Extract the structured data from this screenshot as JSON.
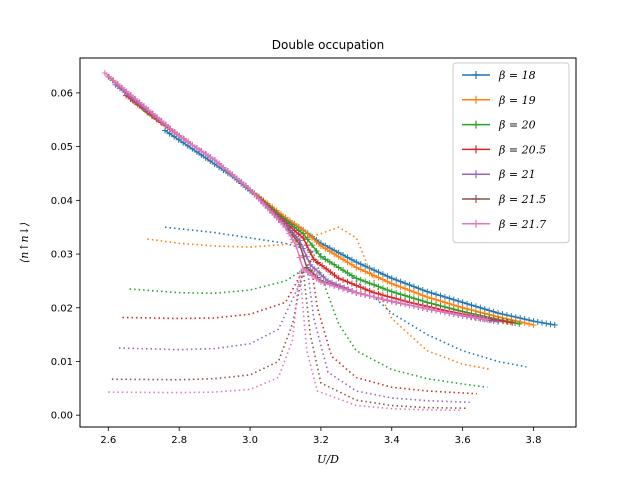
{
  "chart_data": {
    "type": "line",
    "title": "Double occupation",
    "xlabel": "U/D",
    "ylabel": "⟨n↑n↓⟩",
    "xlim": [
      2.52,
      3.92
    ],
    "ylim": [
      -0.0022,
      0.0665
    ],
    "xticks": [
      2.6,
      2.8,
      3.0,
      3.2,
      3.4,
      3.6,
      3.8
    ],
    "xtick_labels": [
      "2.6",
      "2.8",
      "3.0",
      "3.2",
      "3.4",
      "3.6",
      "3.8"
    ],
    "yticks": [
      0.0,
      0.01,
      0.02,
      0.03,
      0.04,
      0.05,
      0.06
    ],
    "ytick_labels": [
      "0.00",
      "0.01",
      "0.02",
      "0.03",
      "0.04",
      "0.05",
      "0.06"
    ],
    "legend_position": "top-right",
    "grid": false,
    "series": [
      {
        "name": "β = 18",
        "color": "#1f77b4",
        "solid": [
          [
            2.76,
            0.053
          ],
          [
            2.85,
            0.049
          ],
          [
            2.95,
            0.0445
          ],
          [
            3.05,
            0.039
          ],
          [
            3.1,
            0.0365
          ],
          [
            3.15,
            0.0345
          ],
          [
            3.2,
            0.032
          ],
          [
            3.3,
            0.0285
          ],
          [
            3.4,
            0.0255
          ],
          [
            3.5,
            0.023
          ],
          [
            3.6,
            0.021
          ],
          [
            3.7,
            0.019
          ],
          [
            3.8,
            0.0175
          ],
          [
            3.86,
            0.0168
          ]
        ],
        "dotted": [
          [
            2.76,
            0.035
          ],
          [
            2.9,
            0.034
          ],
          [
            3.0,
            0.033
          ],
          [
            3.1,
            0.032
          ],
          [
            3.2,
            0.03
          ],
          [
            3.3,
            0.025
          ],
          [
            3.4,
            0.019
          ],
          [
            3.5,
            0.015
          ],
          [
            3.6,
            0.012
          ],
          [
            3.7,
            0.01
          ],
          [
            3.78,
            0.009
          ]
        ]
      },
      {
        "name": "β = 19",
        "color": "#ff7f0e",
        "solid": [
          [
            2.71,
            0.0563
          ],
          [
            2.8,
            0.052
          ],
          [
            2.9,
            0.0475
          ],
          [
            3.0,
            0.042
          ],
          [
            3.1,
            0.0368
          ],
          [
            3.15,
            0.0345
          ],
          [
            3.2,
            0.0315
          ],
          [
            3.3,
            0.0275
          ],
          [
            3.4,
            0.0245
          ],
          [
            3.5,
            0.022
          ],
          [
            3.6,
            0.02
          ],
          [
            3.7,
            0.0183
          ],
          [
            3.8,
            0.0168
          ]
        ],
        "dotted": [
          [
            2.71,
            0.0328
          ],
          [
            2.8,
            0.032
          ],
          [
            2.9,
            0.0315
          ],
          [
            3.0,
            0.0313
          ],
          [
            3.1,
            0.0318
          ],
          [
            3.2,
            0.0338
          ],
          [
            3.25,
            0.035
          ],
          [
            3.3,
            0.033
          ],
          [
            3.35,
            0.025
          ],
          [
            3.4,
            0.018
          ],
          [
            3.5,
            0.012
          ],
          [
            3.6,
            0.0095
          ],
          [
            3.68,
            0.0085
          ]
        ]
      },
      {
        "name": "β = 20",
        "color": "#2ca02c",
        "solid": [
          [
            2.67,
            0.0585
          ],
          [
            2.8,
            0.052
          ],
          [
            2.9,
            0.0475
          ],
          [
            3.0,
            0.042
          ],
          [
            3.1,
            0.0362
          ],
          [
            3.15,
            0.0338
          ],
          [
            3.2,
            0.0295
          ],
          [
            3.3,
            0.0255
          ],
          [
            3.4,
            0.023
          ],
          [
            3.5,
            0.021
          ],
          [
            3.6,
            0.0193
          ],
          [
            3.7,
            0.0178
          ],
          [
            3.76,
            0.017
          ]
        ],
        "dotted": [
          [
            2.66,
            0.0235
          ],
          [
            2.8,
            0.0228
          ],
          [
            2.9,
            0.0227
          ],
          [
            3.0,
            0.0233
          ],
          [
            3.1,
            0.025
          ],
          [
            3.16,
            0.0275
          ],
          [
            3.18,
            0.03
          ],
          [
            3.2,
            0.026
          ],
          [
            3.25,
            0.017
          ],
          [
            3.3,
            0.012
          ],
          [
            3.4,
            0.0085
          ],
          [
            3.5,
            0.0068
          ],
          [
            3.6,
            0.0058
          ],
          [
            3.67,
            0.0052
          ]
        ]
      },
      {
        "name": "β = 20.5",
        "color": "#d62728",
        "solid": [
          [
            2.65,
            0.0595
          ],
          [
            2.8,
            0.052
          ],
          [
            2.9,
            0.0475
          ],
          [
            3.0,
            0.042
          ],
          [
            3.1,
            0.0358
          ],
          [
            3.15,
            0.033
          ],
          [
            3.18,
            0.029
          ],
          [
            3.25,
            0.0255
          ],
          [
            3.35,
            0.0228
          ],
          [
            3.45,
            0.021
          ],
          [
            3.55,
            0.0195
          ],
          [
            3.65,
            0.0182
          ],
          [
            3.74,
            0.0172
          ]
        ],
        "dotted": [
          [
            2.64,
            0.0182
          ],
          [
            2.8,
            0.018
          ],
          [
            2.9,
            0.0181
          ],
          [
            3.0,
            0.0188
          ],
          [
            3.1,
            0.021
          ],
          [
            3.15,
            0.027
          ],
          [
            3.17,
            0.029
          ],
          [
            3.19,
            0.02
          ],
          [
            3.23,
            0.011
          ],
          [
            3.3,
            0.007
          ],
          [
            3.4,
            0.0052
          ],
          [
            3.5,
            0.0045
          ],
          [
            3.64,
            0.004
          ]
        ]
      },
      {
        "name": "β = 21",
        "color": "#9467bd",
        "solid": [
          [
            2.62,
            0.0615
          ],
          [
            2.8,
            0.052
          ],
          [
            2.9,
            0.0475
          ],
          [
            3.0,
            0.042
          ],
          [
            3.1,
            0.0355
          ],
          [
            3.14,
            0.0325
          ],
          [
            3.17,
            0.028
          ],
          [
            3.22,
            0.025
          ],
          [
            3.3,
            0.0228
          ],
          [
            3.4,
            0.0212
          ],
          [
            3.5,
            0.0198
          ],
          [
            3.6,
            0.0185
          ],
          [
            3.7,
            0.0174
          ]
        ],
        "dotted": [
          [
            2.63,
            0.0125
          ],
          [
            2.8,
            0.0122
          ],
          [
            2.9,
            0.0124
          ],
          [
            3.0,
            0.0133
          ],
          [
            3.08,
            0.016
          ],
          [
            3.13,
            0.023
          ],
          [
            3.16,
            0.028
          ],
          [
            3.18,
            0.018
          ],
          [
            3.22,
            0.008
          ],
          [
            3.3,
            0.0045
          ],
          [
            3.4,
            0.0032
          ],
          [
            3.5,
            0.0027
          ],
          [
            3.62,
            0.0024
          ]
        ]
      },
      {
        "name": "β = 21.5",
        "color": "#8c564b",
        "solid": [
          [
            2.6,
            0.063
          ],
          [
            2.8,
            0.052
          ],
          [
            2.9,
            0.0475
          ],
          [
            3.0,
            0.042
          ],
          [
            3.1,
            0.0352
          ],
          [
            3.14,
            0.0318
          ],
          [
            3.16,
            0.0275
          ],
          [
            3.2,
            0.025
          ],
          [
            3.3,
            0.0228
          ],
          [
            3.4,
            0.0212
          ],
          [
            3.5,
            0.0198
          ],
          [
            3.6,
            0.0186
          ],
          [
            3.68,
            0.0177
          ]
        ],
        "dotted": [
          [
            2.61,
            0.0067
          ],
          [
            2.8,
            0.0066
          ],
          [
            2.9,
            0.0068
          ],
          [
            3.0,
            0.0075
          ],
          [
            3.08,
            0.01
          ],
          [
            3.12,
            0.017
          ],
          [
            3.15,
            0.027
          ],
          [
            3.17,
            0.015
          ],
          [
            3.2,
            0.006
          ],
          [
            3.3,
            0.0028
          ],
          [
            3.4,
            0.0018
          ],
          [
            3.5,
            0.0014
          ],
          [
            3.61,
            0.0013
          ]
        ]
      },
      {
        "name": "β = 21.7",
        "color": "#e377c2",
        "solid": [
          [
            2.59,
            0.0637
          ],
          [
            2.8,
            0.052
          ],
          [
            2.9,
            0.0475
          ],
          [
            3.0,
            0.042
          ],
          [
            3.1,
            0.035
          ],
          [
            3.13,
            0.0315
          ],
          [
            3.15,
            0.0272
          ],
          [
            3.2,
            0.0248
          ],
          [
            3.3,
            0.0228
          ],
          [
            3.4,
            0.0212
          ],
          [
            3.5,
            0.0198
          ],
          [
            3.6,
            0.0186
          ],
          [
            3.67,
            0.0178
          ]
        ],
        "dotted": [
          [
            2.6,
            0.0043
          ],
          [
            2.8,
            0.0042
          ],
          [
            2.9,
            0.0043
          ],
          [
            3.0,
            0.0048
          ],
          [
            3.08,
            0.007
          ],
          [
            3.12,
            0.014
          ],
          [
            3.14,
            0.027
          ],
          [
            3.16,
            0.012
          ],
          [
            3.19,
            0.0045
          ],
          [
            3.3,
            0.0018
          ],
          [
            3.4,
            0.0012
          ],
          [
            3.5,
            0.001
          ],
          [
            3.6,
            0.0009
          ]
        ]
      }
    ]
  }
}
